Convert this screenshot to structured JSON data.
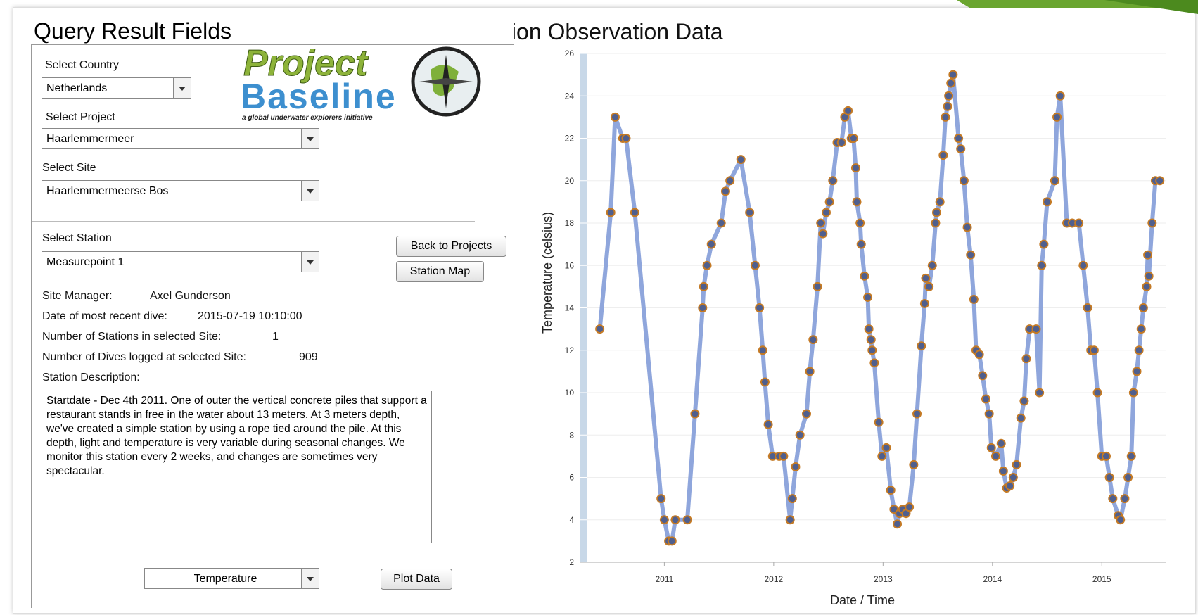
{
  "header": {
    "left_title": "Query Result Fields"
  },
  "logo": {
    "line1": "Project",
    "line2": "Baseline",
    "tagline": "a global underwater explorers initiative"
  },
  "form": {
    "country": {
      "label": "Select Country",
      "value": "Netherlands"
    },
    "project": {
      "label": "Select Project",
      "value": "Haarlemmermeer"
    },
    "site": {
      "label": "Select Site",
      "value": "Haarlemmermeerse Bos"
    },
    "station": {
      "label": "Select Station",
      "value": "Measurepoint 1"
    },
    "buttons": [
      "Back to Projects",
      "Station Map"
    ],
    "info": [
      {
        "label": "Site Manager:",
        "value": "Axel Gunderson"
      },
      {
        "label": "Date of most recent dive:",
        "value": "2015-07-19 10:10:00"
      },
      {
        "label": "Number of Stations in selected Site:",
        "value": "1"
      },
      {
        "label": "Number of Dives logged at selected Site:",
        "value": "909"
      }
    ],
    "description": {
      "label": "Station Description:",
      "text": "Startdate - Dec 4th 2011. One of outer the vertical concrete piles that support a restaurant stands in free in the water about 13 meters. At 3 meters depth, we've created a simple station by using a rope tied around the pile. At this depth, light and temperature is very variable during seasonal changes. We monitor this station every 2 weeks, and changes are sometimes very spectacular."
    },
    "parameter": "Temperature",
    "plot_button": "Plot Data"
  },
  "chart_data": {
    "type": "line",
    "title": "Station Observation Data",
    "x_label": "Date / Time",
    "y_label": "Temperature (celsius)",
    "x": [
      2010.41,
      2010.51,
      2010.55,
      2010.62,
      2010.65,
      2010.73,
      2010.97,
      2011.0,
      2011.04,
      2011.07,
      2011.1,
      2011.21,
      2011.28,
      2011.35,
      2011.36,
      2011.39,
      2011.43,
      2011.52,
      2011.56,
      2011.6,
      2011.7,
      2011.78,
      2011.83,
      2011.87,
      2011.9,
      2011.92,
      2011.95,
      2011.99,
      2012.05,
      2012.09,
      2012.15,
      2012.17,
      2012.2,
      2012.24,
      2012.3,
      2012.33,
      2012.36,
      2012.4,
      2012.43,
      2012.45,
      2012.48,
      2012.51,
      2012.54,
      2012.58,
      2012.62,
      2012.65,
      2012.68,
      2012.71,
      2012.73,
      2012.75,
      2012.76,
      2012.79,
      2012.8,
      2012.83,
      2012.86,
      2012.87,
      2012.89,
      2012.9,
      2012.92,
      2012.96,
      2012.99,
      2013.03,
      2013.07,
      2013.1,
      2013.13,
      2013.15,
      2013.18,
      2013.21,
      2013.24,
      2013.28,
      2013.31,
      2013.35,
      2013.38,
      2013.39,
      2013.42,
      2013.45,
      2013.48,
      2013.49,
      2013.52,
      2013.55,
      2013.57,
      2013.59,
      2013.6,
      2013.62,
      2013.64,
      2013.69,
      2013.71,
      2013.74,
      2013.77,
      2013.8,
      2013.83,
      2013.85,
      2013.88,
      2013.91,
      2013.94,
      2013.97,
      2013.99,
      2014.03,
      2014.08,
      2014.1,
      2014.13,
      2014.16,
      2014.19,
      2014.22,
      2014.26,
      2014.29,
      2014.31,
      2014.34,
      2014.4,
      2014.43,
      2014.45,
      2014.47,
      2014.5,
      2014.57,
      2014.59,
      2014.62,
      2014.68,
      2014.73,
      2014.79,
      2014.83,
      2014.87,
      2014.9,
      2014.93,
      2014.96,
      2015.0,
      2015.04,
      2015.07,
      2015.1,
      2015.15,
      2015.17,
      2015.21,
      2015.24,
      2015.27,
      2015.29,
      2015.32,
      2015.34,
      2015.36,
      2015.38,
      2015.41,
      2015.42,
      2015.43,
      2015.46,
      2015.49,
      2015.53
    ],
    "series": [
      {
        "name": "Temperature",
        "color": "#8fa6dc",
        "values": [
          13,
          18.5,
          23,
          22,
          22,
          18.5,
          5,
          4,
          3,
          3,
          4,
          4,
          9,
          14,
          15,
          16,
          17,
          18,
          19.5,
          20,
          21,
          18.5,
          16,
          14,
          12,
          10.5,
          8.5,
          7,
          7,
          7,
          4,
          5,
          6.5,
          8,
          9,
          11,
          12.5,
          15,
          18,
          17.5,
          18.5,
          19,
          20,
          21.8,
          21.8,
          23,
          23.3,
          22,
          22,
          20.6,
          19,
          18,
          17,
          15.5,
          14.5,
          13,
          12.5,
          12,
          11.4,
          8.6,
          7,
          7.4,
          5.4,
          4.5,
          3.8,
          4.3,
          4.5,
          4.3,
          4.6,
          6.6,
          9,
          12.2,
          14.2,
          15.4,
          15,
          16,
          18,
          18.5,
          19,
          21.2,
          23,
          23.5,
          24,
          24.6,
          25,
          22,
          21.5,
          20,
          17.8,
          16.5,
          14.4,
          12,
          11.8,
          10.8,
          9.7,
          9,
          7.4,
          7,
          7.6,
          6.3,
          5.5,
          5.6,
          6,
          6.6,
          8.8,
          9.6,
          11.6,
          13,
          13,
          10,
          16,
          17,
          19,
          20,
          23,
          24,
          18,
          18,
          18,
          16,
          14,
          12,
          12,
          10,
          7,
          7,
          6,
          5,
          4.2,
          4,
          5,
          6,
          7,
          10,
          11,
          12,
          13,
          14,
          15,
          16.5,
          15.5,
          18,
          20,
          20
        ]
      }
    ],
    "xlim": [
      2010.29,
      2015.59
    ],
    "xticks": [
      2011,
      2012,
      2013,
      2014,
      2015
    ],
    "ylim": [
      2,
      26
    ],
    "yticks": [
      2,
      4,
      6,
      8,
      10,
      12,
      14,
      16,
      18,
      20,
      22,
      24,
      26
    ],
    "grid": true,
    "marker_color": "#c47a25"
  }
}
